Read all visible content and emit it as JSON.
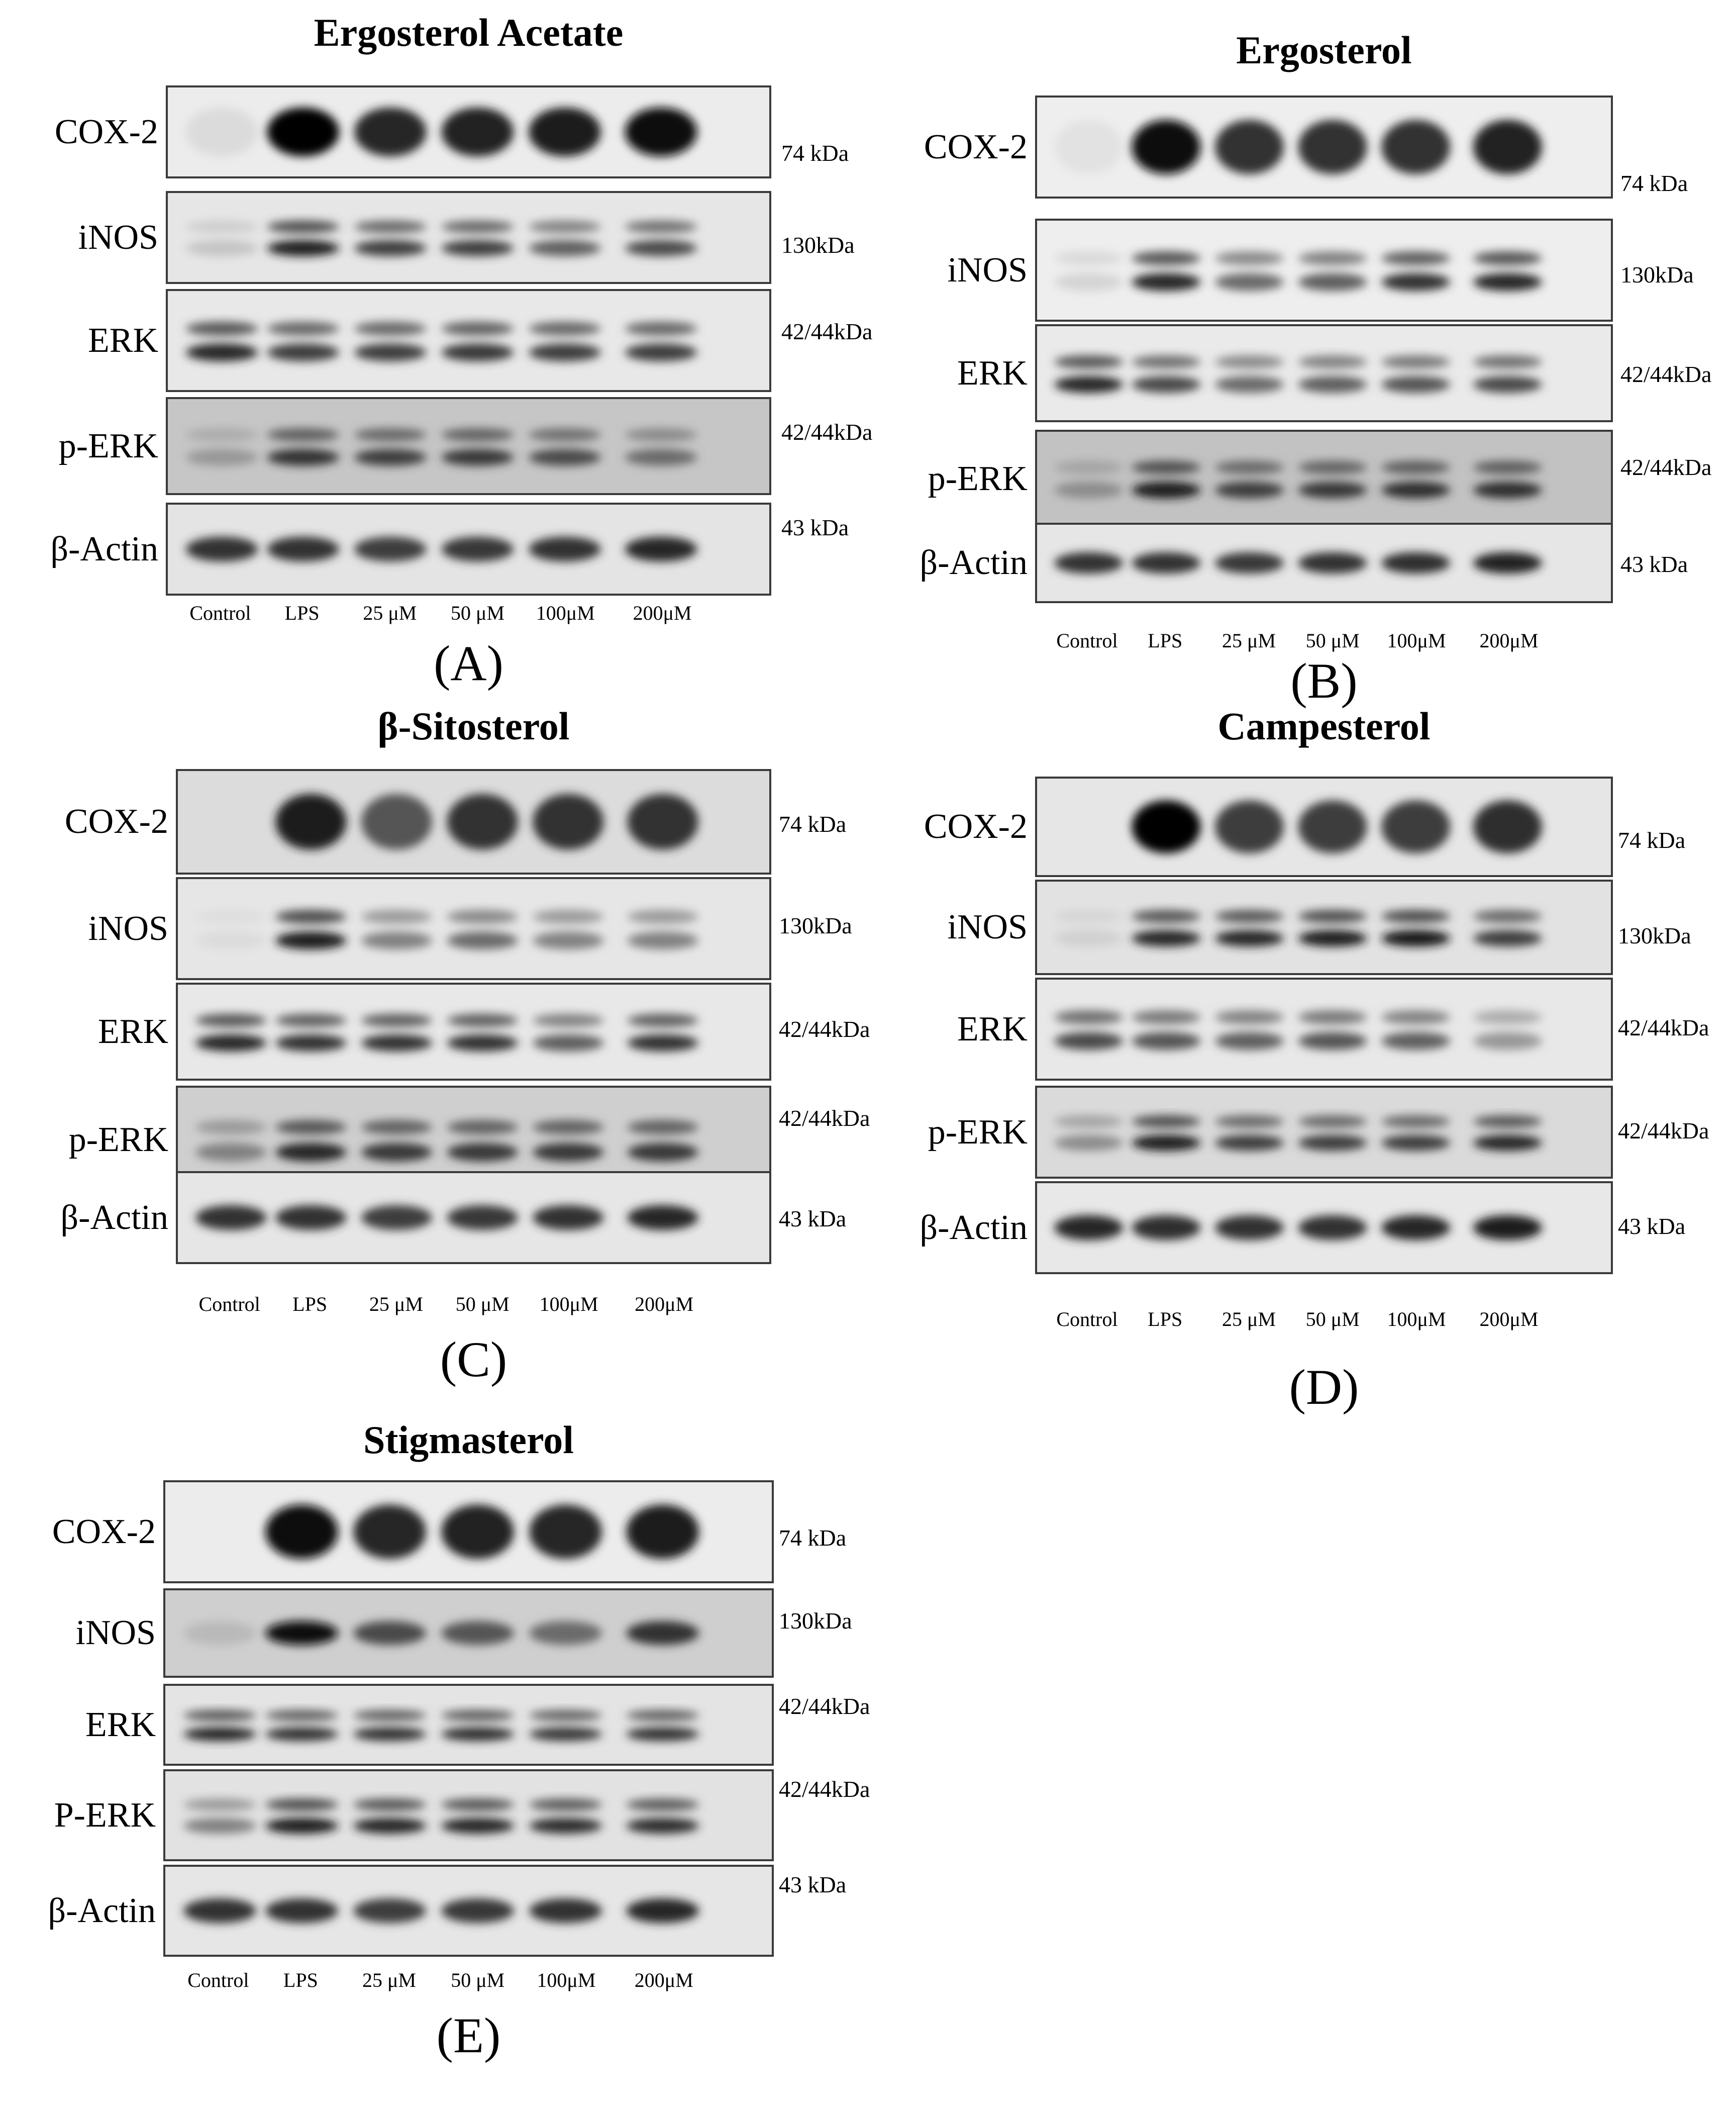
{
  "lanes": [
    "Control",
    "LPS",
    "25 μM",
    "50 μM",
    "100μM",
    "200μM"
  ],
  "panels": [
    {
      "letter": "(A)",
      "title": "Ergosterol Acetate",
      "rows": [
        {
          "protein": "COX-2",
          "mw": "74 kDa",
          "bg": "#ececec",
          "bands": [
            [
              0.05
            ],
            [
              1.0
            ],
            [
              0.85
            ],
            [
              0.88
            ],
            [
              0.9
            ],
            [
              0.95
            ]
          ],
          "double": false
        },
        {
          "protein": "iNOS",
          "mw": "130kDa",
          "bg": "#e6e6e6",
          "bands": [
            [
              0.15
            ],
            [
              0.9
            ],
            [
              0.75
            ],
            [
              0.75
            ],
            [
              0.6
            ],
            [
              0.7
            ]
          ],
          "double": true
        },
        {
          "protein": "ERK",
          "mw": "42/44kDa",
          "bg": "#e8e8e8",
          "bands": [
            [
              0.85
            ],
            [
              0.75
            ],
            [
              0.75
            ],
            [
              0.78
            ],
            [
              0.75
            ],
            [
              0.75
            ]
          ],
          "double": true
        },
        {
          "protein": "p-ERK",
          "mw": "42/44kDa",
          "bg": "#c6c6c6",
          "bands": [
            [
              0.35
            ],
            [
              0.8
            ],
            [
              0.75
            ],
            [
              0.78
            ],
            [
              0.7
            ],
            [
              0.55
            ]
          ],
          "double": true
        },
        {
          "protein": "β-Actin",
          "mw": "43 kDa",
          "bg": "#e4e4e4",
          "bands": [
            [
              0.8
            ],
            [
              0.8
            ],
            [
              0.75
            ],
            [
              0.78
            ],
            [
              0.8
            ],
            [
              0.85
            ]
          ],
          "double": false
        }
      ]
    },
    {
      "letter": "(B)",
      "title": "Ergosterol",
      "rows": [
        {
          "protein": "COX-2",
          "mw": "74 kDa",
          "bg": "#eeeeee",
          "bands": [
            [
              0.02
            ],
            [
              0.95
            ],
            [
              0.8
            ],
            [
              0.8
            ],
            [
              0.8
            ],
            [
              0.88
            ]
          ],
          "double": false
        },
        {
          "protein": "iNOS",
          "mw": "130kDa",
          "bg": "#eeeeee",
          "bands": [
            [
              0.08
            ],
            [
              0.85
            ],
            [
              0.55
            ],
            [
              0.6
            ],
            [
              0.8
            ],
            [
              0.85
            ]
          ],
          "double": true
        },
        {
          "protein": "ERK",
          "mw": "42/44kDa",
          "bg": "#eaeaea",
          "bands": [
            [
              0.85
            ],
            [
              0.7
            ],
            [
              0.55
            ],
            [
              0.6
            ],
            [
              0.65
            ],
            [
              0.7
            ]
          ],
          "double": true
        },
        {
          "protein": "p-ERK",
          "mw": "42/44kDa",
          "bg": "#c2c2c2",
          "bands": [
            [
              0.4
            ],
            [
              0.9
            ],
            [
              0.75
            ],
            [
              0.78
            ],
            [
              0.82
            ],
            [
              0.82
            ]
          ],
          "double": true
        },
        {
          "protein": "β-Actin",
          "mw": "43 kDa",
          "bg": "#e6e6e6",
          "bands": [
            [
              0.8
            ],
            [
              0.8
            ],
            [
              0.78
            ],
            [
              0.8
            ],
            [
              0.82
            ],
            [
              0.88
            ]
          ],
          "double": false
        }
      ]
    },
    {
      "letter": "(C)",
      "title": "β-Sitosterol",
      "rows": [
        {
          "protein": "COX-2",
          "mw": "74 kDa",
          "bg": "#dcdcdc",
          "bands": [
            [
              0.0
            ],
            [
              0.9
            ],
            [
              0.65
            ],
            [
              0.8
            ],
            [
              0.8
            ],
            [
              0.8
            ]
          ],
          "double": false
        },
        {
          "protein": "iNOS",
          "mw": "130kDa",
          "bg": "#e6e6e6",
          "bands": [
            [
              0.05
            ],
            [
              0.9
            ],
            [
              0.45
            ],
            [
              0.55
            ],
            [
              0.45
            ],
            [
              0.45
            ]
          ],
          "double": true
        },
        {
          "protein": "ERK",
          "mw": "42/44kDa",
          "bg": "#e8e8e8",
          "bands": [
            [
              0.85
            ],
            [
              0.8
            ],
            [
              0.8
            ],
            [
              0.8
            ],
            [
              0.6
            ],
            [
              0.8
            ]
          ],
          "double": true
        },
        {
          "protein": "p-ERK",
          "mw": "42/44kDa",
          "bg": "#cfcfcf",
          "bands": [
            [
              0.45
            ],
            [
              0.85
            ],
            [
              0.78
            ],
            [
              0.78
            ],
            [
              0.78
            ],
            [
              0.78
            ]
          ],
          "double": true
        },
        {
          "protein": "β-Actin",
          "mw": "43 kDa",
          "bg": "#e6e6e6",
          "bands": [
            [
              0.8
            ],
            [
              0.8
            ],
            [
              0.75
            ],
            [
              0.78
            ],
            [
              0.8
            ],
            [
              0.85
            ]
          ],
          "double": false
        }
      ]
    },
    {
      "letter": "(D)",
      "title": "Campesterol",
      "rows": [
        {
          "protein": "COX-2",
          "mw": "74 kDa",
          "bg": "#e6e6e6",
          "bands": [
            [
              0.0
            ],
            [
              1.0
            ],
            [
              0.75
            ],
            [
              0.75
            ],
            [
              0.75
            ],
            [
              0.82
            ]
          ],
          "double": false
        },
        {
          "protein": "iNOS",
          "mw": "130kDa",
          "bg": "#e2e2e2",
          "bands": [
            [
              0.1
            ],
            [
              0.85
            ],
            [
              0.85
            ],
            [
              0.9
            ],
            [
              0.92
            ],
            [
              0.75
            ]
          ],
          "double": true
        },
        {
          "protein": "ERK",
          "mw": "42/44kDa",
          "bg": "#e8e8e8",
          "bands": [
            [
              0.7
            ],
            [
              0.65
            ],
            [
              0.6
            ],
            [
              0.65
            ],
            [
              0.6
            ],
            [
              0.35
            ]
          ],
          "double": true
        },
        {
          "protein": "p-ERK",
          "mw": "42/44kDa",
          "bg": "#dadada",
          "bands": [
            [
              0.4
            ],
            [
              0.9
            ],
            [
              0.75
            ],
            [
              0.75
            ],
            [
              0.75
            ],
            [
              0.85
            ]
          ],
          "double": true
        },
        {
          "protein": "β-Actin",
          "mw": "43 kDa",
          "bg": "#e8e8e8",
          "bands": [
            [
              0.85
            ],
            [
              0.82
            ],
            [
              0.8
            ],
            [
              0.8
            ],
            [
              0.85
            ],
            [
              0.9
            ]
          ],
          "double": false
        }
      ]
    },
    {
      "letter": "(E)",
      "title": "Stigmasterol",
      "rows": [
        {
          "protein": "COX-2",
          "mw": "74 kDa",
          "bg": "#ececec",
          "bands": [
            [
              0.0
            ],
            [
              0.98
            ],
            [
              0.85
            ],
            [
              0.88
            ],
            [
              0.85
            ],
            [
              0.9
            ]
          ],
          "double": false
        },
        {
          "protein": "iNOS",
          "mw": "130kDa",
          "bg": "#cfcfcf",
          "bands": [
            [
              0.2
            ],
            [
              0.95
            ],
            [
              0.7
            ],
            [
              0.65
            ],
            [
              0.55
            ],
            [
              0.8
            ]
          ],
          "double": false
        },
        {
          "protein": "ERK",
          "mw": "42/44kDa",
          "bg": "#e4e4e4",
          "bands": [
            [
              0.85
            ],
            [
              0.8
            ],
            [
              0.8
            ],
            [
              0.82
            ],
            [
              0.78
            ],
            [
              0.8
            ]
          ],
          "double": true
        },
        {
          "protein": "P-ERK",
          "mw": "42/44kDa",
          "bg": "#e2e2e2",
          "bands": [
            [
              0.45
            ],
            [
              0.9
            ],
            [
              0.85
            ],
            [
              0.85
            ],
            [
              0.82
            ],
            [
              0.82
            ]
          ],
          "double": true
        },
        {
          "protein": "β-Actin",
          "mw": "43 kDa",
          "bg": "#e6e6e6",
          "bands": [
            [
              0.8
            ],
            [
              0.8
            ],
            [
              0.75
            ],
            [
              0.78
            ],
            [
              0.8
            ],
            [
              0.85
            ]
          ],
          "double": false
        }
      ]
    }
  ]
}
